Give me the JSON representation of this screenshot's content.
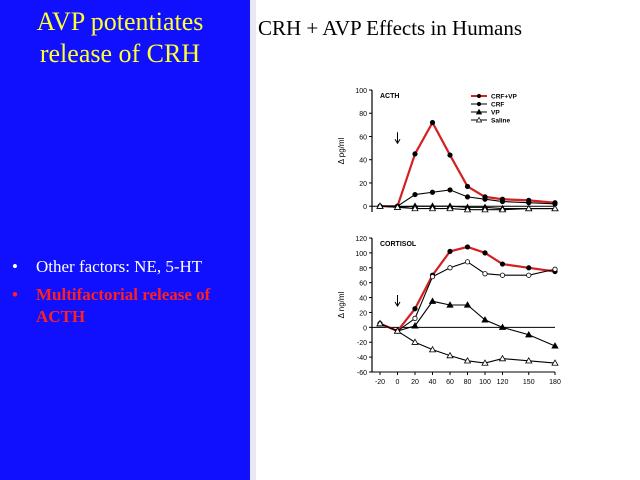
{
  "left_panel": {
    "title_lines": [
      "AVP potentiates",
      "release of CRH"
    ],
    "bullets": [
      {
        "mark": "•",
        "text": "Other factors: NE, 5-HT",
        "color": "#ffffff"
      },
      {
        "mark": "•",
        "text": "Multifactorial release of ACTH",
        "color": "#ff2020"
      }
    ]
  },
  "right_title": "CRH + AVP Effects in Humans",
  "colors": {
    "panel_bg": "#1010ff",
    "title": "#ffff33",
    "highlight": "#ff2020"
  },
  "chart_data": [
    {
      "type": "line",
      "title": "ACTH",
      "ylabel": "Δ pg/ml",
      "xlabel": "",
      "x": [
        -20,
        0,
        20,
        40,
        60,
        80,
        100,
        120,
        150,
        180
      ],
      "xlim": [
        -20,
        180
      ],
      "ylim": [
        -5,
        100
      ],
      "yticks": [
        0,
        20,
        40,
        60,
        80,
        100
      ],
      "legend": "top-right",
      "series": [
        {
          "name": "CRF+VP",
          "marker": "filled-circle",
          "color": "#d42020",
          "values": [
            0,
            0,
            45,
            72,
            44,
            17,
            8,
            6,
            5,
            3
          ]
        },
        {
          "name": "CRF",
          "marker": "filled-circle",
          "color": "#000000",
          "values": [
            0,
            0,
            10,
            12,
            14,
            8,
            6,
            4,
            3,
            2
          ]
        },
        {
          "name": "VP",
          "marker": "filled-triangle",
          "color": "#000000",
          "values": [
            0,
            -1,
            0,
            0,
            0,
            -1,
            -1,
            -2,
            -2,
            -2
          ]
        },
        {
          "name": "Saline",
          "marker": "open-triangle",
          "color": "#000000",
          "values": [
            0,
            -1,
            -2,
            -2,
            -2,
            -3,
            -3,
            -3,
            -2,
            -2
          ]
        }
      ]
    },
    {
      "type": "line",
      "title": "CORTISOL",
      "ylabel": "Δ ng/ml",
      "xlabel": "",
      "x": [
        -20,
        0,
        20,
        40,
        60,
        80,
        100,
        120,
        150,
        180
      ],
      "xticks": [
        -20,
        0,
        20,
        40,
        60,
        80,
        100,
        120,
        150,
        180
      ],
      "xlim": [
        -20,
        180
      ],
      "ylim": [
        -60,
        120
      ],
      "yticks": [
        -60,
        -40,
        -20,
        0,
        20,
        40,
        60,
        80,
        100,
        120
      ],
      "series": [
        {
          "name": "CRF+VP",
          "marker": "filled-circle",
          "color": "#d42020",
          "values": [
            5,
            -5,
            25,
            70,
            102,
            108,
            100,
            85,
            80,
            75
          ]
        },
        {
          "name": "CRF",
          "marker": "open-circle",
          "color": "#000000",
          "values": [
            5,
            -5,
            12,
            68,
            80,
            88,
            72,
            70,
            70,
            78
          ]
        },
        {
          "name": "VP",
          "marker": "filled-triangle",
          "color": "#000000",
          "values": [
            5,
            -5,
            2,
            35,
            30,
            30,
            10,
            0,
            -10,
            -25
          ]
        },
        {
          "name": "Saline",
          "marker": "open-triangle",
          "color": "#000000",
          "values": [
            5,
            -5,
            -20,
            -30,
            -38,
            -45,
            -48,
            -42,
            -45,
            -48
          ]
        }
      ]
    }
  ]
}
